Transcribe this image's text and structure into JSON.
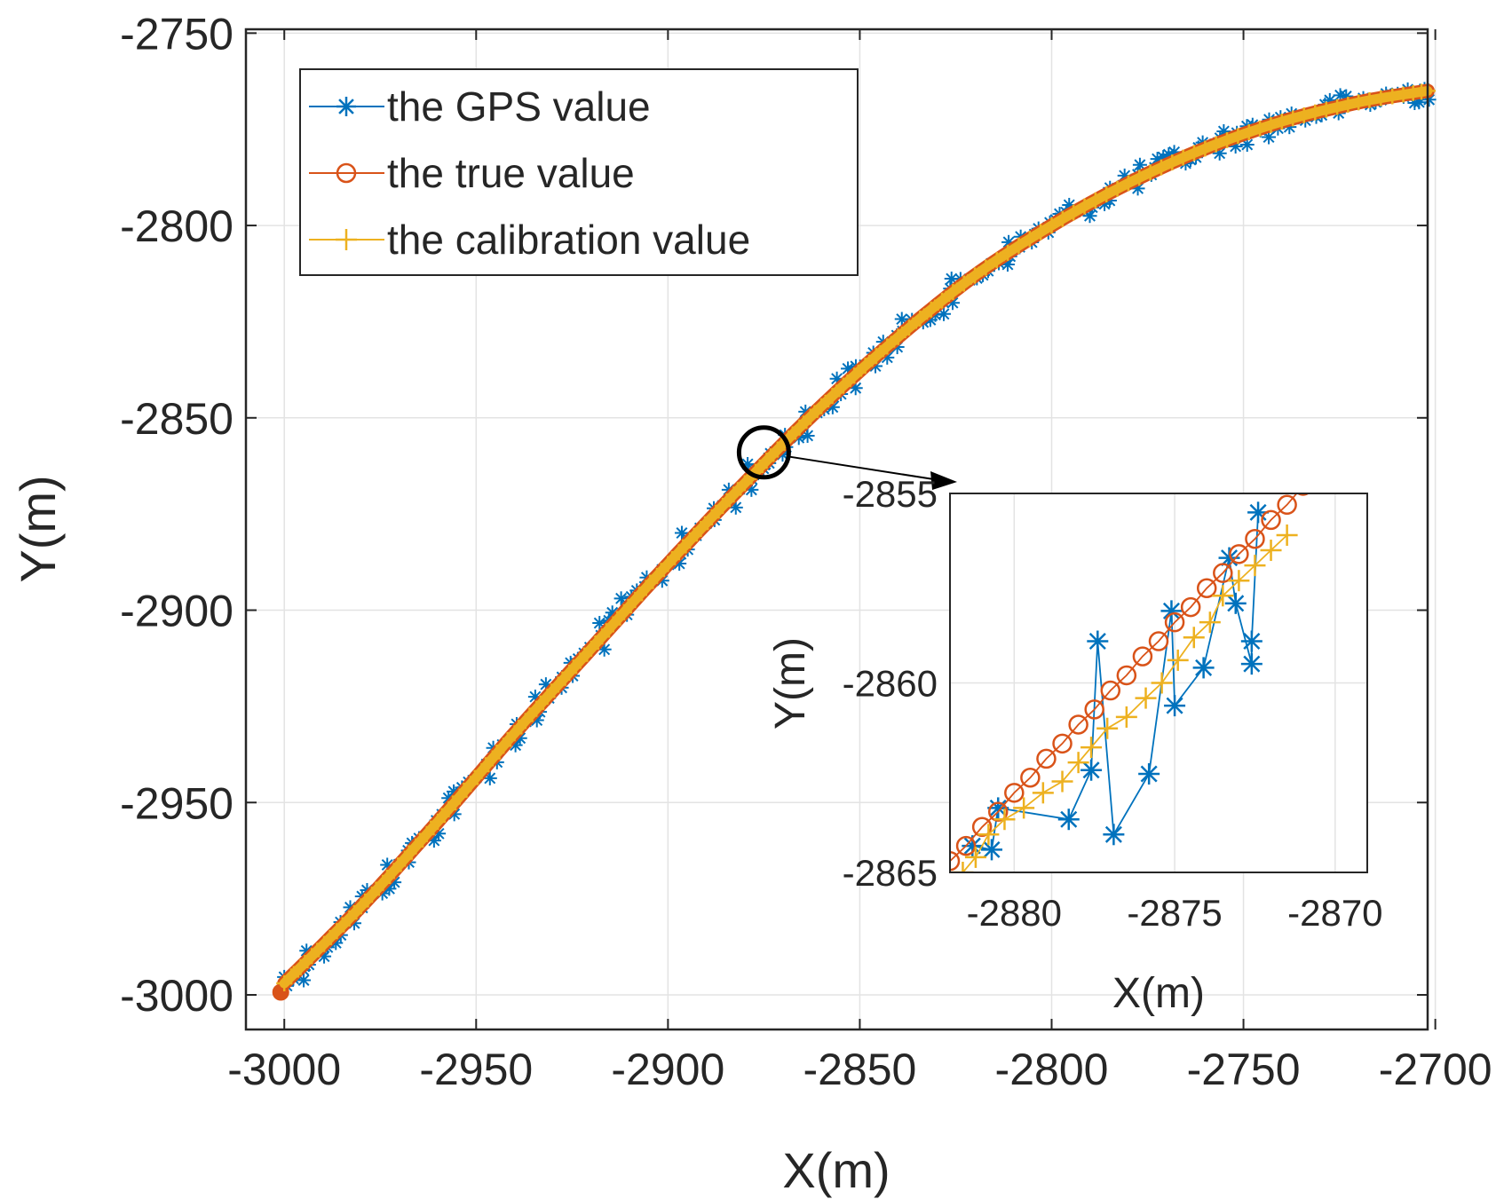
{
  "chart_data": {
    "type": "line",
    "title": "",
    "main": {
      "xlabel": "X(m)",
      "ylabel": "Y(m)",
      "xlim": [
        -3010,
        -2702
      ],
      "ylim": [
        -3009,
        -2749
      ],
      "xticks": [
        -3000,
        -2950,
        -2900,
        -2850,
        -2800,
        -2750,
        -2700
      ],
      "yticks": [
        -2750,
        -2800,
        -2850,
        -2900,
        -2950,
        -3000
      ],
      "grid": true,
      "legend_position": "top-left",
      "series": [
        {
          "name": "the GPS value",
          "color": "#0072BD",
          "marker": "asterisk",
          "path_x": [
            -3000,
            -2980,
            -2960,
            -2940,
            -2920,
            -2900,
            -2880,
            -2860,
            -2840,
            -2820,
            -2800,
            -2780,
            -2760,
            -2740,
            -2720,
            -2702
          ],
          "path_y": [
            -2997,
            -2977,
            -2955,
            -2932,
            -2910,
            -2888,
            -2867,
            -2847,
            -2829,
            -2813,
            -2800,
            -2789,
            -2780,
            -2773,
            -2768,
            -2765
          ]
        },
        {
          "name": "the true value",
          "color": "#D95319",
          "marker": "circle",
          "path_x": [
            -3000,
            -2980,
            -2960,
            -2940,
            -2920,
            -2900,
            -2880,
            -2860,
            -2840,
            -2820,
            -2800,
            -2780,
            -2760,
            -2740,
            -2720,
            -2702
          ],
          "path_y": [
            -2997,
            -2977,
            -2955,
            -2932,
            -2910,
            -2888,
            -2867,
            -2847,
            -2829,
            -2813,
            -2800,
            -2789,
            -2780,
            -2773,
            -2768,
            -2765
          ]
        },
        {
          "name": "the calibration value",
          "color": "#EDB120",
          "marker": "plus",
          "path_x": [
            -3000,
            -2980,
            -2960,
            -2940,
            -2920,
            -2900,
            -2880,
            -2860,
            -2840,
            -2820,
            -2800,
            -2780,
            -2760,
            -2740,
            -2720,
            -2702
          ],
          "path_y": [
            -2997,
            -2977,
            -2955,
            -2932,
            -2910,
            -2888,
            -2867,
            -2847,
            -2829,
            -2813,
            -2800,
            -2789,
            -2780,
            -2773,
            -2768,
            -2765
          ]
        }
      ],
      "zoom_marker": {
        "x": -2875,
        "y": -2859,
        "label": "zoomed region"
      }
    },
    "inset": {
      "xlabel": "X(m)",
      "ylabel": "Y(m)",
      "xlim": [
        -2882,
        -2869
      ],
      "ylim": [
        -2865,
        -2855
      ],
      "xticks": [
        -2880,
        -2875,
        -2870
      ],
      "yticks": [
        -2855,
        -2860,
        -2865
      ],
      "grid": true,
      "series": [
        {
          "name": "the GPS value",
          "color": "#0072BD",
          "marker": "asterisk",
          "x": [
            -2881.3,
            -2880.7,
            -2880.5,
            -2878.3,
            -2877.6,
            -2877.4,
            -2876.9,
            -2875.8,
            -2875.1,
            -2875.0,
            -2874.1,
            -2873.3,
            -2873.1,
            -2872.6,
            -2872.6,
            -2872.4
          ],
          "y": [
            -2864.3,
            -2864.4,
            -2863.3,
            -2863.6,
            -2862.3,
            -2858.9,
            -2864.0,
            -2862.4,
            -2858.1,
            -2860.6,
            -2859.6,
            -2856.7,
            -2857.9,
            -2859.5,
            -2858.9,
            -2855.5
          ]
        },
        {
          "name": "the true value",
          "color": "#D95319",
          "marker": "circle",
          "x": [
            -2882.0,
            -2881.5,
            -2881.0,
            -2880.5,
            -2880.0,
            -2879.5,
            -2879.0,
            -2878.5,
            -2878.0,
            -2877.5,
            -2877.0,
            -2876.5,
            -2876.0,
            -2875.5,
            -2875.0,
            -2874.5,
            -2874.0,
            -2873.5,
            -2873.0,
            -2872.5,
            -2872.0,
            -2871.5,
            -2871.0,
            -2870.5,
            -2870.0,
            -2869.5
          ],
          "y": [
            -2864.7,
            -2864.3,
            -2863.8,
            -2863.4,
            -2862.9,
            -2862.5,
            -2862.0,
            -2861.6,
            -2861.1,
            -2860.7,
            -2860.2,
            -2859.8,
            -2859.3,
            -2858.9,
            -2858.4,
            -2858.0,
            -2857.5,
            -2857.1,
            -2856.6,
            -2856.2,
            -2855.7,
            -2855.3,
            -2854.8,
            -2854.4,
            -2853.9,
            -2853.5
          ]
        },
        {
          "name": "the calibration value",
          "color": "#EDB120",
          "marker": "plus",
          "x": [
            -2881.6,
            -2881.2,
            -2880.8,
            -2880.3,
            -2879.7,
            -2879.1,
            -2878.5,
            -2878.0,
            -2877.6,
            -2877.1,
            -2876.5,
            -2875.9,
            -2875.4,
            -2874.9,
            -2874.4,
            -2873.9,
            -2873.5,
            -2873.0,
            -2872.5,
            -2872.0,
            -2871.5
          ],
          "y": [
            -2865.0,
            -2864.6,
            -2864.0,
            -2863.6,
            -2863.3,
            -2862.9,
            -2862.6,
            -2862.1,
            -2861.7,
            -2861.2,
            -2860.9,
            -2860.4,
            -2860.0,
            -2859.4,
            -2858.8,
            -2858.4,
            -2857.7,
            -2857.3,
            -2856.9,
            -2856.5,
            -2856.1
          ]
        }
      ]
    }
  }
}
